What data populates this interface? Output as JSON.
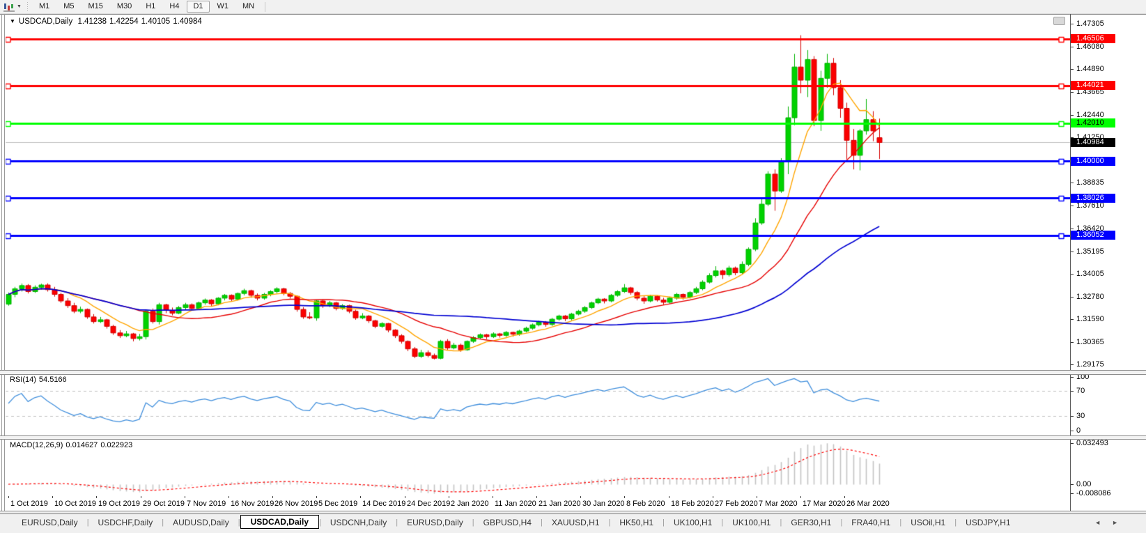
{
  "toolbar": {
    "timeframes": [
      {
        "label": "M1",
        "active": false
      },
      {
        "label": "M5",
        "active": false
      },
      {
        "label": "M15",
        "active": false
      },
      {
        "label": "M30",
        "active": false
      },
      {
        "label": "H1",
        "active": false
      },
      {
        "label": "H4",
        "active": false
      },
      {
        "label": "D1",
        "active": true
      },
      {
        "label": "W1",
        "active": false
      },
      {
        "label": "MN",
        "active": false
      }
    ],
    "icon_caret": "▼"
  },
  "chart_title": {
    "caret": "▼",
    "symbol": "USDCAD,Daily",
    "open": "1.41238",
    "high": "1.42254",
    "low": "1.40105",
    "close": "1.40984"
  },
  "chart_data": {
    "type": "candlestick",
    "symbol": "USDCAD",
    "timeframe": "Daily",
    "colors": {
      "bull": "#00D200",
      "bear": "#FB0000",
      "wick_bull": "#00B400",
      "wick_bear": "#d40000",
      "ma_fast": "#FFA500",
      "ma_medium": "#E60000",
      "ma_slow": "#0000D2",
      "current_line": "#BDBDBD"
    },
    "ma_periods": {
      "fast": 8,
      "medium": 20,
      "slow": 50
    },
    "y_axis_ticks": [
      "1.47305",
      "1.46080",
      "1.44890",
      "1.43665",
      "1.42440",
      "1.41250",
      "1.38835",
      "1.37610",
      "1.36420",
      "1.35195",
      "1.34005",
      "1.32780",
      "1.31590",
      "1.30365",
      "1.29175"
    ],
    "y_axis_range": {
      "top": 1.4783,
      "bottom": 1.2887
    },
    "hlines": [
      {
        "value": 1.46506,
        "label": "1.46506",
        "color": "#FF0000",
        "text_color": "#FFFFFF"
      },
      {
        "value": 1.44021,
        "label": "1.44021",
        "color": "#FF0000",
        "text_color": "#FFFFFF"
      },
      {
        "value": 1.4201,
        "label": "1.42010",
        "color": "#00FF00",
        "text_color": "#000000"
      },
      {
        "value": 1.4,
        "label": "1.40000",
        "color": "#0000FF",
        "text_color": "#FFFFFF"
      },
      {
        "value": 1.38026,
        "label": "1.38026",
        "color": "#0000FF",
        "text_color": "#FFFFFF"
      },
      {
        "value": 1.36052,
        "label": "1.36052",
        "color": "#0000FF",
        "text_color": "#FFFFFF"
      }
    ],
    "current_price": {
      "value": 1.40984,
      "label": "1.40984",
      "tag_bg": "#000000",
      "tag_text": "#FFFFFF"
    },
    "x_labels": [
      "1 Oct 2019",
      "10 Oct 2019",
      "19 Oct 2019",
      "29 Oct 2019",
      "7 Nov 2019",
      "16 Nov 2019",
      "26 Nov 2019",
      "5 Dec 2019",
      "14 Dec 2019",
      "24 Dec 2019",
      "2 Jan 2020",
      "11 Jan 2020",
      "21 Jan 2020",
      "30 Jan 2020",
      "8 Feb 2020",
      "18 Feb 2020",
      "27 Feb 2020",
      "7 Mar 2020",
      "17 Mar 2020",
      "26 Mar 2020"
    ],
    "ohlc": [
      [
        1.3238,
        1.33,
        1.323,
        1.329
      ],
      [
        1.329,
        1.333,
        1.3275,
        1.332
      ],
      [
        1.332,
        1.3348,
        1.3305,
        1.3337
      ],
      [
        1.3337,
        1.3345,
        1.3295,
        1.3305
      ],
      [
        1.3305,
        1.3338,
        1.3298,
        1.3328
      ],
      [
        1.3328,
        1.3347,
        1.3315,
        1.334
      ],
      [
        1.334,
        1.3349,
        1.3305,
        1.3315
      ],
      [
        1.3315,
        1.333,
        1.3278,
        1.329
      ],
      [
        1.329,
        1.3298,
        1.3245,
        1.3255
      ],
      [
        1.3255,
        1.327,
        1.3218,
        1.323
      ],
      [
        1.323,
        1.3245,
        1.319,
        1.32
      ],
      [
        1.32,
        1.3225,
        1.319,
        1.321
      ],
      [
        1.321,
        1.3215,
        1.316,
        1.317
      ],
      [
        1.317,
        1.3185,
        1.3135,
        1.3145
      ],
      [
        1.3145,
        1.317,
        1.3138,
        1.3155
      ],
      [
        1.3155,
        1.316,
        1.3108,
        1.312
      ],
      [
        1.312,
        1.3128,
        1.3075,
        1.3085
      ],
      [
        1.3085,
        1.31,
        1.3058,
        1.307
      ],
      [
        1.307,
        1.3095,
        1.3062,
        1.308
      ],
      [
        1.308,
        1.3085,
        1.304,
        1.3055
      ],
      [
        1.3055,
        1.308,
        1.3045,
        1.3065
      ],
      [
        1.3065,
        1.321,
        1.305,
        1.32
      ],
      [
        1.32,
        1.3215,
        1.3135,
        1.3145
      ],
      [
        1.3145,
        1.3245,
        1.313,
        1.3235
      ],
      [
        1.3235,
        1.324,
        1.319,
        1.3205
      ],
      [
        1.3205,
        1.322,
        1.3178,
        1.319
      ],
      [
        1.319,
        1.3228,
        1.3185,
        1.322
      ],
      [
        1.322,
        1.3245,
        1.321,
        1.3235
      ],
      [
        1.3235,
        1.3242,
        1.3205,
        1.3215
      ],
      [
        1.3215,
        1.3252,
        1.3208,
        1.3245
      ],
      [
        1.3245,
        1.3268,
        1.3235,
        1.326
      ],
      [
        1.326,
        1.3265,
        1.3228,
        1.324
      ],
      [
        1.324,
        1.3275,
        1.3232,
        1.327
      ],
      [
        1.327,
        1.3292,
        1.3258,
        1.3285
      ],
      [
        1.3285,
        1.329,
        1.3255,
        1.3265
      ],
      [
        1.3265,
        1.33,
        1.3258,
        1.3295
      ],
      [
        1.3295,
        1.332,
        1.3285,
        1.331
      ],
      [
        1.331,
        1.3315,
        1.3272,
        1.3285
      ],
      [
        1.3285,
        1.3295,
        1.3258,
        1.327
      ],
      [
        1.327,
        1.3298,
        1.3262,
        1.329
      ],
      [
        1.329,
        1.3312,
        1.328,
        1.3305
      ],
      [
        1.3305,
        1.3328,
        1.3295,
        1.332
      ],
      [
        1.332,
        1.3325,
        1.3285,
        1.3295
      ],
      [
        1.3295,
        1.3302,
        1.3268,
        1.328
      ],
      [
        1.328,
        1.3285,
        1.3198,
        1.321
      ],
      [
        1.321,
        1.3222,
        1.316,
        1.317
      ],
      [
        1.317,
        1.3195,
        1.3158,
        1.3165
      ],
      [
        1.3165,
        1.326,
        1.315,
        1.3255
      ],
      [
        1.3255,
        1.3262,
        1.3218,
        1.323
      ],
      [
        1.323,
        1.3255,
        1.3222,
        1.3245
      ],
      [
        1.3245,
        1.325,
        1.3205,
        1.3215
      ],
      [
        1.3215,
        1.3238,
        1.3208,
        1.323
      ],
      [
        1.323,
        1.3235,
        1.319,
        1.32
      ],
      [
        1.32,
        1.3208,
        1.3155,
        1.3165
      ],
      [
        1.3165,
        1.319,
        1.3158,
        1.3175
      ],
      [
        1.3175,
        1.318,
        1.3138,
        1.315
      ],
      [
        1.315,
        1.3155,
        1.311,
        1.312
      ],
      [
        1.312,
        1.3142,
        1.3112,
        1.3135
      ],
      [
        1.3135,
        1.3138,
        1.3088,
        1.31
      ],
      [
        1.31,
        1.3105,
        1.3058,
        1.307
      ],
      [
        1.307,
        1.3078,
        1.3028,
        1.304
      ],
      [
        1.304,
        1.3045,
        1.2988,
        1.3
      ],
      [
        1.3,
        1.301,
        1.2951,
        1.296
      ],
      [
        1.296,
        1.2995,
        1.2952,
        1.298
      ],
      [
        1.298,
        1.2992,
        1.2955,
        1.2965
      ],
      [
        1.2965,
        1.2975,
        1.2944,
        1.295
      ],
      [
        1.295,
        1.3048,
        1.2945,
        1.304
      ],
      [
        1.304,
        1.3052,
        1.2995,
        1.3005
      ],
      [
        1.3005,
        1.3032,
        1.2998,
        1.302
      ],
      [
        1.302,
        1.3028,
        1.2985,
        1.2995
      ],
      [
        1.2995,
        1.3045,
        1.299,
        1.304
      ],
      [
        1.304,
        1.3068,
        1.3032,
        1.306
      ],
      [
        1.306,
        1.3082,
        1.3052,
        1.3075
      ],
      [
        1.3075,
        1.308,
        1.3052,
        1.3065
      ],
      [
        1.3065,
        1.3088,
        1.3058,
        1.308
      ],
      [
        1.308,
        1.3085,
        1.306,
        1.3072
      ],
      [
        1.3072,
        1.3095,
        1.3064,
        1.3088
      ],
      [
        1.3088,
        1.3092,
        1.3065,
        1.3078
      ],
      [
        1.3078,
        1.3102,
        1.307,
        1.3095
      ],
      [
        1.3095,
        1.3118,
        1.3088,
        1.311
      ],
      [
        1.311,
        1.3135,
        1.3102,
        1.3128
      ],
      [
        1.3128,
        1.315,
        1.312,
        1.3142
      ],
      [
        1.3142,
        1.3148,
        1.3118,
        1.313
      ],
      [
        1.313,
        1.3165,
        1.3122,
        1.3158
      ],
      [
        1.3158,
        1.3182,
        1.315,
        1.3175
      ],
      [
        1.3175,
        1.318,
        1.3148,
        1.316
      ],
      [
        1.316,
        1.3192,
        1.3152,
        1.3185
      ],
      [
        1.3185,
        1.3208,
        1.3178,
        1.32
      ],
      [
        1.32,
        1.3228,
        1.3192,
        1.322
      ],
      [
        1.322,
        1.3252,
        1.3212,
        1.3245
      ],
      [
        1.3245,
        1.3272,
        1.3238,
        1.3265
      ],
      [
        1.3265,
        1.327,
        1.3242,
        1.3255
      ],
      [
        1.3255,
        1.3292,
        1.3248,
        1.3285
      ],
      [
        1.3285,
        1.3312,
        1.3278,
        1.3305
      ],
      [
        1.3305,
        1.3345,
        1.3298,
        1.3325
      ],
      [
        1.3325,
        1.333,
        1.3288,
        1.33
      ],
      [
        1.33,
        1.3308,
        1.3258,
        1.327
      ],
      [
        1.327,
        1.3282,
        1.324,
        1.3255
      ],
      [
        1.3255,
        1.3288,
        1.3248,
        1.328
      ],
      [
        1.328,
        1.3285,
        1.3252,
        1.326
      ],
      [
        1.326,
        1.3272,
        1.3235,
        1.3248
      ],
      [
        1.3248,
        1.3278,
        1.324,
        1.327
      ],
      [
        1.327,
        1.3298,
        1.3262,
        1.329
      ],
      [
        1.329,
        1.3295,
        1.3262,
        1.3275
      ],
      [
        1.3275,
        1.3308,
        1.3268,
        1.33
      ],
      [
        1.33,
        1.333,
        1.3292,
        1.332
      ],
      [
        1.332,
        1.3365,
        1.3312,
        1.3355
      ],
      [
        1.3355,
        1.3402,
        1.3348,
        1.339
      ],
      [
        1.339,
        1.344,
        1.338,
        1.3415
      ],
      [
        1.3415,
        1.3422,
        1.3372,
        1.3395
      ],
      [
        1.3395,
        1.3442,
        1.3385,
        1.343
      ],
      [
        1.343,
        1.3438,
        1.3392,
        1.3405
      ],
      [
        1.3405,
        1.3465,
        1.3398,
        1.345
      ],
      [
        1.345,
        1.354,
        1.344,
        1.353
      ],
      [
        1.353,
        1.3695,
        1.352,
        1.367
      ],
      [
        1.367,
        1.38,
        1.366,
        1.377
      ],
      [
        1.377,
        1.3945,
        1.376,
        1.393
      ],
      [
        1.393,
        1.3955,
        1.3735,
        1.384
      ],
      [
        1.384,
        1.4015,
        1.383,
        1.4
      ],
      [
        1.4,
        1.429,
        1.393,
        1.423
      ],
      [
        1.423,
        1.457,
        1.419,
        1.45
      ],
      [
        1.45,
        1.4669,
        1.436,
        1.443
      ],
      [
        1.443,
        1.459,
        1.434,
        1.454
      ],
      [
        1.454,
        1.4558,
        1.4185,
        1.4215
      ],
      [
        1.4215,
        1.448,
        1.416,
        1.444
      ],
      [
        1.444,
        1.457,
        1.439,
        1.452
      ],
      [
        1.452,
        1.4548,
        1.435,
        1.439
      ],
      [
        1.439,
        1.443,
        1.423,
        1.428
      ],
      [
        1.428,
        1.431,
        1.401,
        1.411
      ],
      [
        1.411,
        1.417,
        1.3955,
        1.403
      ],
      [
        1.403,
        1.417,
        1.395,
        1.416
      ],
      [
        1.416,
        1.433,
        1.414,
        1.422
      ],
      [
        1.422,
        1.4265,
        1.4105,
        1.416
      ],
      [
        1.41238,
        1.42254,
        1.40105,
        1.40984
      ]
    ],
    "rsi": {
      "label": "RSI(14)",
      "value": "54.5166",
      "period": 14,
      "line_color": "#3F8EDC",
      "level_color": "#C0C0C0",
      "levels": [
        70,
        30
      ],
      "ticks": [
        {
          "v": 100,
          "label": "100"
        },
        {
          "v": 70,
          "label": "70"
        },
        {
          "v": 30,
          "label": "30"
        },
        {
          "v": 0,
          "label": "0"
        }
      ]
    },
    "macd": {
      "label": "MACD(12,26,9)",
      "main_value": "0.014627",
      "signal_value": "0.022923",
      "fast": 12,
      "slow": 26,
      "signal": 9,
      "hist_color": "#C4C4C4",
      "signal_color": "#FF0000",
      "ticks": [
        {
          "v": 0.032493,
          "label": "0.032493"
        },
        {
          "v": 0.0,
          "label": "0.00"
        },
        {
          "v": -0.008086,
          "label": "-0.008086"
        }
      ]
    }
  },
  "tabs": {
    "items": [
      {
        "label": "EURUSD,Daily",
        "active": false
      },
      {
        "label": "USDCHF,Daily",
        "active": false
      },
      {
        "label": "AUDUSD,Daily",
        "active": false
      },
      {
        "label": "USDCAD,Daily",
        "active": true
      },
      {
        "label": "USDCNH,Daily",
        "active": false
      },
      {
        "label": "EURUSD,Daily",
        "active": false
      },
      {
        "label": "GBPUSD,H4",
        "active": false
      },
      {
        "label": "XAUUSD,H1",
        "active": false
      },
      {
        "label": "HK50,H1",
        "active": false
      },
      {
        "label": "UK100,H1",
        "active": false
      },
      {
        "label": "UK100,H1",
        "active": false
      },
      {
        "label": "GER30,H1",
        "active": false
      },
      {
        "label": "FRA40,H1",
        "active": false
      },
      {
        "label": "USOil,H1",
        "active": false
      },
      {
        "label": "USDJPY,H1",
        "active": false
      }
    ],
    "scroll_left": "◄",
    "scroll_right": "►"
  }
}
